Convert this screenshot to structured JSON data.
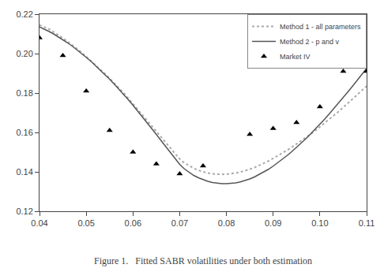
{
  "chart_data": {
    "type": "line",
    "title": "Figure 1.   Fitted SABR volatilities under both estimation",
    "xlim": [
      0.04,
      0.11
    ],
    "ylim": [
      0.12,
      0.22
    ],
    "xticks": [
      0.04,
      0.05,
      0.06,
      0.07,
      0.08,
      0.09,
      {
        "value": 0.1,
        "label": "0.10"
      },
      0.11
    ],
    "yticks": [
      0.12,
      0.14,
      0.16,
      0.18,
      {
        "value": 0.2,
        "label": "0.20"
      },
      0.22
    ],
    "grid": false,
    "legend": "upper right",
    "series": [
      {
        "name": "Method 1 - all parameters",
        "type": "line",
        "line_style": "dotted",
        "color": "#aaaaaa",
        "x": [
          0.04,
          0.041,
          0.042,
          0.043,
          0.044,
          0.045,
          0.046,
          0.047,
          0.048,
          0.049,
          0.05,
          0.051,
          0.052,
          0.053,
          0.054,
          0.055,
          0.056,
          0.057,
          0.058,
          0.059,
          0.06,
          0.061,
          0.062,
          0.063,
          0.064,
          0.065,
          0.066,
          0.067,
          0.068,
          0.069,
          0.07,
          0.071,
          0.072,
          0.073,
          0.074,
          0.075,
          0.076,
          0.077,
          0.078,
          0.079,
          0.08,
          0.081,
          0.082,
          0.083,
          0.084,
          0.085,
          0.086,
          0.087,
          0.088,
          0.089,
          0.09,
          0.091,
          0.092,
          0.093,
          0.094,
          0.095,
          0.096,
          0.097,
          0.098,
          0.099,
          0.1,
          0.101,
          0.102,
          0.103,
          0.104,
          0.105,
          0.106,
          0.107,
          0.108,
          0.109,
          0.11
        ],
        "values": [
          0.2145,
          0.2135,
          0.2125,
          0.211,
          0.2095,
          0.2078,
          0.2061,
          0.2044,
          0.2025,
          0.2006,
          0.1985,
          0.1965,
          0.1943,
          0.1921,
          0.1898,
          0.1875,
          0.1851,
          0.1826,
          0.18,
          0.1773,
          0.1745,
          0.1718,
          0.169,
          0.1662,
          0.1634,
          0.1606,
          0.1577,
          0.1549,
          0.152,
          0.1493,
          0.1465,
          0.1445,
          0.143,
          0.1418,
          0.1408,
          0.14,
          0.1394,
          0.139,
          0.1388,
          0.1387,
          0.1388,
          0.139,
          0.1394,
          0.1399,
          0.1405,
          0.1413,
          0.1422,
          0.1432,
          0.1443,
          0.1455,
          0.1468,
          0.1481,
          0.1495,
          0.151,
          0.1525,
          0.1541,
          0.1557,
          0.1574,
          0.1591,
          0.1609,
          0.1628,
          0.1647,
          0.1666,
          0.1686,
          0.1706,
          0.1727,
          0.1748,
          0.1769,
          0.1791,
          0.1813,
          0.1835
        ]
      },
      {
        "name": "Method 2 - p and v",
        "type": "line",
        "line_style": "solid",
        "color": "#555555",
        "x": [
          0.04,
          0.041,
          0.042,
          0.043,
          0.044,
          0.045,
          0.046,
          0.047,
          0.048,
          0.049,
          0.05,
          0.051,
          0.052,
          0.053,
          0.054,
          0.055,
          0.056,
          0.057,
          0.058,
          0.059,
          0.06,
          0.061,
          0.062,
          0.063,
          0.064,
          0.065,
          0.066,
          0.067,
          0.068,
          0.069,
          0.07,
          0.071,
          0.072,
          0.073,
          0.074,
          0.075,
          0.076,
          0.077,
          0.078,
          0.079,
          0.08,
          0.081,
          0.082,
          0.083,
          0.084,
          0.085,
          0.086,
          0.087,
          0.088,
          0.089,
          0.09,
          0.091,
          0.092,
          0.093,
          0.094,
          0.095,
          0.096,
          0.097,
          0.098,
          0.099,
          0.1,
          0.101,
          0.102,
          0.103,
          0.104,
          0.105,
          0.106,
          0.107,
          0.108,
          0.109,
          0.11
        ],
        "values": [
          0.2135,
          0.2125,
          0.2113,
          0.21,
          0.2086,
          0.2071,
          0.2055,
          0.2038,
          0.202,
          0.2001,
          0.1981,
          0.1961,
          0.1939,
          0.1917,
          0.1894,
          0.187,
          0.1845,
          0.182,
          0.1793,
          0.1766,
          0.1738,
          0.1709,
          0.168,
          0.165,
          0.162,
          0.159,
          0.1559,
          0.1528,
          0.1498,
          0.1468,
          0.1438,
          0.1415,
          0.1397,
          0.1382,
          0.137,
          0.136,
          0.1352,
          0.1346,
          0.1342,
          0.134,
          0.134,
          0.1341,
          0.1344,
          0.1349,
          0.1356,
          0.1364,
          0.1374,
          0.1386,
          0.1399,
          0.1413,
          0.1429,
          0.1446,
          0.1464,
          0.1483,
          0.1503,
          0.1524,
          0.1546,
          0.1568,
          0.1592,
          0.1616,
          0.1641,
          0.1667,
          0.1694,
          0.1721,
          0.1749,
          0.1777,
          0.1806,
          0.1835,
          0.1865,
          0.1895,
          0.1925
        ]
      },
      {
        "name": "Market IV",
        "type": "scatter",
        "marker": "triangle-up",
        "color": "#000000",
        "x": [
          0.04,
          0.045,
          0.05,
          0.055,
          0.06,
          0.065,
          0.07,
          0.075,
          0.085,
          0.09,
          0.095,
          0.1,
          0.105,
          0.11
        ],
        "values": [
          0.208,
          0.199,
          0.181,
          0.161,
          0.15,
          0.144,
          0.139,
          0.143,
          0.159,
          0.162,
          0.165,
          0.173,
          0.191,
          0.191
        ]
      }
    ]
  }
}
